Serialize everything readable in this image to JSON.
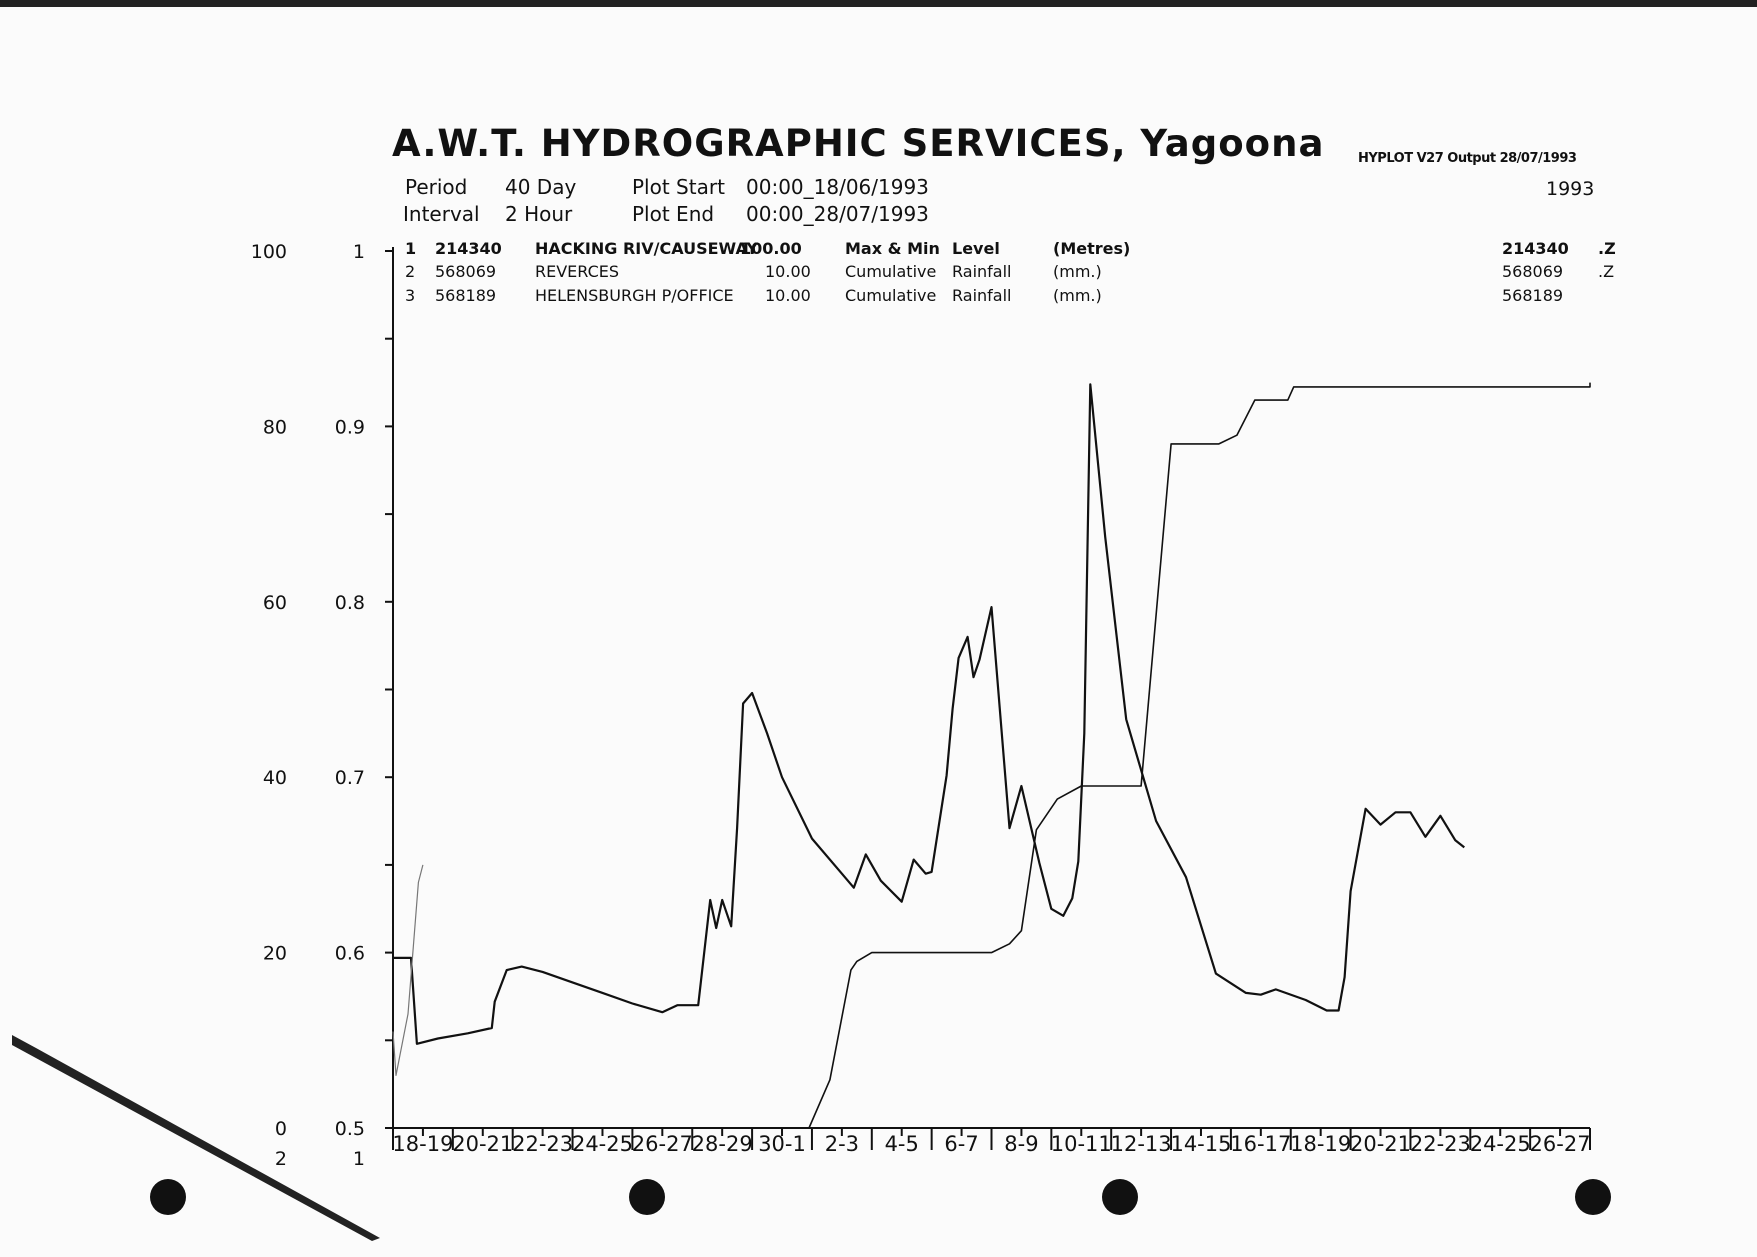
{
  "header": {
    "title": "A.W.T. HYDROGRAPHIC SERVICES, Yagoona",
    "hyplot": "HYPLOT V27   Output 28/07/1993",
    "year": "1993",
    "period_label": "Period",
    "period_value": "40 Day",
    "interval_label": "Interval",
    "interval_value": "2 Hour",
    "plot_start_label": "Plot Start",
    "plot_start_value": "00:00_18/06/1993",
    "plot_end_label": "Plot End",
    "plot_end_value": "00:00_28/07/1993"
  },
  "legend": [
    {
      "num": "1",
      "site": "214340",
      "name": "HACKING RIV/CAUSEWAY",
      "scale": "100.00",
      "desc1": "Max & Min",
      "desc2": "Level",
      "unit": "(Metres)",
      "file": "214340",
      "ext": ".Z"
    },
    {
      "num": "2",
      "site": "568069",
      "name": "REVERCES",
      "scale": "10.00",
      "desc1": "Cumulative",
      "desc2": "Rainfall",
      "unit": "(mm.)",
      "file": "568069",
      "ext": ".Z"
    },
    {
      "num": "3",
      "site": "568189",
      "name": "HELENSBURGH P/OFFICE",
      "scale": "10.00",
      "desc1": "Cumulative",
      "desc2": "Rainfall",
      "unit": "(mm.)",
      "file": "568189",
      "ext": ""
    }
  ],
  "chart_data": {
    "type": "line",
    "title": "A.W.T. HYDROGRAPHIC SERVICES, Yagoona",
    "rain_axis": {
      "ticks": [
        "100",
        "80",
        "60",
        "40",
        "20",
        "0"
      ],
      "values": [
        100,
        80,
        60,
        40,
        20,
        0
      ],
      "range": [
        0,
        100
      ]
    },
    "level_axis": {
      "ticks": [
        "1",
        "0.9",
        "0.8",
        "0.7",
        "0.6",
        "0.5"
      ],
      "values": [
        1,
        0.9,
        0.8,
        0.7,
        0.6,
        0.5
      ],
      "range": [
        0.5,
        1.0
      ]
    },
    "bottom_labels": {
      "left_outer": "2",
      "left_inner": "1"
    },
    "x_range_days": [
      0,
      40
    ],
    "categories": [
      "18-19",
      "20-21",
      "22-23",
      "24-25",
      "26-27",
      "28-29",
      "30-1",
      "2-3",
      "4-5",
      "6-7",
      "8-9",
      "10-11",
      "12-13",
      "14-15",
      "16-17",
      "18-19",
      "20-21",
      "22-23",
      "24-25",
      "26-27"
    ],
    "series": [
      {
        "name": "HACKING RIV/CAUSEWAY",
        "axis": "level",
        "x": [
          0,
          0.6,
          0.8,
          1.5,
          2.5,
          3.3,
          3.4,
          3.8,
          4.3,
          5.0,
          6.0,
          7.0,
          8.0,
          9.0,
          9.5,
          10.2,
          10.6,
          10.8,
          11.0,
          11.3,
          11.5,
          11.7,
          12.0,
          12.5,
          13.0,
          14.0,
          15.0,
          15.4,
          15.8,
          16.3,
          17.0,
          17.4,
          17.8,
          18.0,
          18.5,
          18.7,
          18.9,
          19.2,
          19.4,
          19.6,
          20.0,
          20.6,
          21.0,
          21.6,
          22.0,
          22.4,
          22.7,
          22.9,
          23.1,
          23.3,
          23.8,
          24.5,
          25.5,
          26.5,
          27.5,
          28.5,
          29.0,
          29.5,
          30.5,
          31.2,
          31.6,
          31.8,
          32.0,
          32.5,
          33.0,
          33.5,
          34.0,
          34.5,
          35.0,
          35.5,
          35.8
        ],
        "y": [
          0.597,
          0.597,
          0.548,
          0.551,
          0.554,
          0.557,
          0.572,
          0.59,
          0.592,
          0.589,
          0.583,
          0.577,
          0.571,
          0.566,
          0.57,
          0.57,
          0.63,
          0.614,
          0.63,
          0.615,
          0.671,
          0.742,
          0.748,
          0.725,
          0.7,
          0.665,
          0.645,
          0.637,
          0.656,
          0.641,
          0.629,
          0.653,
          0.645,
          0.646,
          0.701,
          0.739,
          0.768,
          0.78,
          0.757,
          0.767,
          0.797,
          0.671,
          0.695,
          0.651,
          0.625,
          0.621,
          0.631,
          0.652,
          0.725,
          0.924,
          0.837,
          0.733,
          0.675,
          0.643,
          0.588,
          0.577,
          0.576,
          0.579,
          0.573,
          0.567,
          0.567,
          0.586,
          0.635,
          0.682,
          0.673,
          0.68,
          0.68,
          0.666,
          0.678,
          0.664,
          0.66
        ],
        "color": "#111111"
      },
      {
        "name": "REVERCES",
        "axis": "rain",
        "x": [
          0,
          0.1,
          0.5,
          0.85,
          1.0
        ],
        "y": [
          11,
          6,
          13,
          28,
          30
        ],
        "color": "#777777"
      },
      {
        "name": "HELENSBURGH P/OFFICE",
        "axis": "rain",
        "x": [
          13.9,
          14.6,
          15.3,
          15.5,
          16.0,
          20.0,
          20.6,
          21.0,
          21.5,
          22.2,
          23.0,
          23.1,
          24.4,
          25.0,
          26.0,
          27.0,
          27.6,
          28.2,
          28.8,
          29.9,
          30.1,
          40.0,
          40.0
        ],
        "y": [
          0,
          5.5,
          18,
          19,
          20,
          20,
          21,
          22.5,
          34,
          37.5,
          39,
          39,
          39,
          39,
          78,
          78,
          78,
          79,
          83,
          83,
          84.5,
          84.5,
          85
        ],
        "color": "#111111"
      }
    ]
  }
}
